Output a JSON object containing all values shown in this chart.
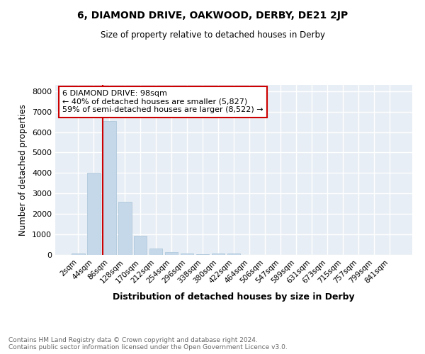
{
  "title1": "6, DIAMOND DRIVE, OAKWOOD, DERBY, DE21 2JP",
  "title2": "Size of property relative to detached houses in Derby",
  "xlabel": "Distribution of detached houses by size in Derby",
  "ylabel": "Number of detached properties",
  "bar_color": "#c5d8ea",
  "bar_edgecolor": "#a8c4d8",
  "background_color": "#e8eef5",
  "grid_color": "#ffffff",
  "categories": [
    "2sqm",
    "44sqm",
    "86sqm",
    "128sqm",
    "170sqm",
    "212sqm",
    "254sqm",
    "296sqm",
    "338sqm",
    "380sqm",
    "422sqm",
    "464sqm",
    "506sqm",
    "547sqm",
    "589sqm",
    "631sqm",
    "673sqm",
    "715sqm",
    "757sqm",
    "799sqm",
    "841sqm"
  ],
  "values": [
    55,
    4000,
    6550,
    2600,
    950,
    325,
    130,
    80,
    50,
    70,
    55,
    0,
    0,
    0,
    0,
    0,
    0,
    0,
    0,
    0,
    0
  ],
  "ylim": [
    0,
    8300
  ],
  "yticks": [
    0,
    1000,
    2000,
    3000,
    4000,
    5000,
    6000,
    7000,
    8000
  ],
  "annotation_text": "6 DIAMOND DRIVE: 98sqm\n← 40% of detached houses are smaller (5,827)\n59% of semi-detached houses are larger (8,522) →",
  "annotation_box_color": "#ffffff",
  "annotation_border_color": "#cc0000",
  "footer": "Contains HM Land Registry data © Crown copyright and database right 2024.\nContains public sector information licensed under the Open Government Licence v3.0."
}
